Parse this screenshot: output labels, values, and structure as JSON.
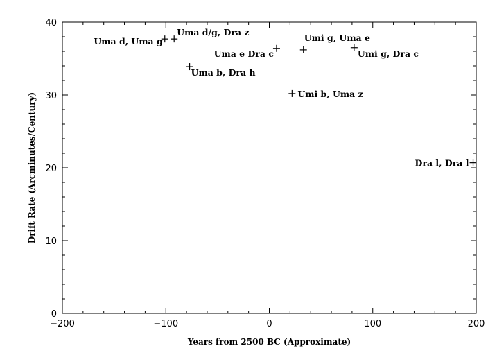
{
  "chart_data": {
    "type": "scatter",
    "title": "",
    "xlabel": "Years from 2500 BC (Approximate)",
    "ylabel": "Drift Rate (Arcminutes/Century)",
    "xlim": [
      -200,
      200
    ],
    "ylim": [
      0,
      40
    ],
    "xticks": [
      -200,
      -100,
      0,
      100,
      200
    ],
    "xtick_labels": [
      "−200",
      "−100",
      "0",
      "100",
      "200"
    ],
    "yticks": [
      0,
      10,
      20,
      30,
      40
    ],
    "ytick_labels": [
      "0",
      "10",
      "20",
      "30",
      "40"
    ],
    "grid": false,
    "marker": "plus",
    "points": [
      {
        "x": -101,
        "y": 37.7,
        "label": "Uma d, Uma g",
        "anchor": "end",
        "dx": -3,
        "dy": 8
      },
      {
        "x": -92,
        "y": 37.7,
        "label": "Uma d/g, Dra z",
        "anchor": "start",
        "dx": 4,
        "dy": -5
      },
      {
        "x": -77,
        "y": 33.9,
        "label": "Uma b, Dra h",
        "anchor": "start",
        "dx": 2,
        "dy": 13
      },
      {
        "x": 7,
        "y": 36.4,
        "label": "Uma e Dra c",
        "anchor": "end",
        "dx": -4,
        "dy": 12
      },
      {
        "x": 33,
        "y": 36.2,
        "label": "Umi g, Uma e",
        "anchor": "start",
        "dx": 1,
        "dy": -13
      },
      {
        "x": 82,
        "y": 36.5,
        "label": "Umi g, Dra c",
        "anchor": "start",
        "dx": 5,
        "dy": 13
      },
      {
        "x": 22,
        "y": 30.2,
        "label": "Umi b, Uma z",
        "anchor": "start",
        "dx": 8,
        "dy": 5
      },
      {
        "x": 197,
        "y": 20.7,
        "label": "Dra l, Dra l",
        "anchor": "end",
        "dx": -6,
        "dy": 5
      }
    ]
  }
}
